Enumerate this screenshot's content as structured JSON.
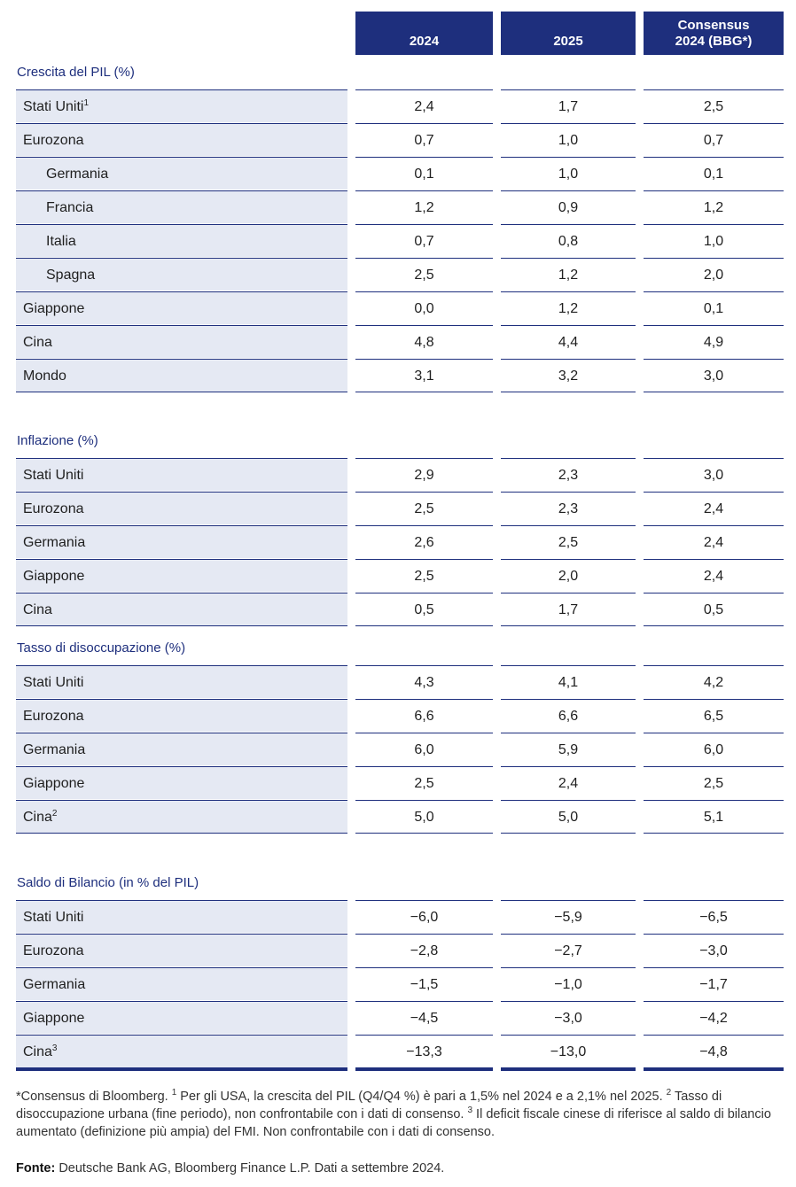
{
  "headers": {
    "col1": "2024",
    "col2": "2025",
    "col3_line1": "Consensus",
    "col3_line2": "2024 (BBG*)"
  },
  "sections": [
    {
      "title": "Crescita del PIL (%)",
      "rows": [
        {
          "label": "Stati Uniti",
          "sup": "1",
          "indent": false,
          "v1": "2,4",
          "v2": "1,7",
          "v3": "2,5"
        },
        {
          "label": "Eurozona",
          "sup": "",
          "indent": false,
          "v1": "0,7",
          "v2": "1,0",
          "v3": "0,7"
        },
        {
          "label": "Germania",
          "sup": "",
          "indent": true,
          "v1": "0,1",
          "v2": "1,0",
          "v3": "0,1"
        },
        {
          "label": "Francia",
          "sup": "",
          "indent": true,
          "v1": "1,2",
          "v2": "0,9",
          "v3": "1,2"
        },
        {
          "label": "Italia",
          "sup": "",
          "indent": true,
          "v1": "0,7",
          "v2": "0,8",
          "v3": "1,0"
        },
        {
          "label": "Spagna",
          "sup": "",
          "indent": true,
          "v1": "2,5",
          "v2": "1,2",
          "v3": "2,0"
        },
        {
          "label": "Giappone",
          "sup": "",
          "indent": false,
          "v1": "0,0",
          "v2": "1,2",
          "v3": "0,1"
        },
        {
          "label": "Cina",
          "sup": "",
          "indent": false,
          "v1": "4,8",
          "v2": "4,4",
          "v3": "4,9"
        },
        {
          "label": "Mondo",
          "sup": "",
          "indent": false,
          "v1": "3,1",
          "v2": "3,2",
          "v3": "3,0"
        }
      ]
    },
    {
      "title": "Inflazione (%)",
      "rows": [
        {
          "label": "Stati Uniti",
          "sup": "",
          "indent": false,
          "v1": "2,9",
          "v2": "2,3",
          "v3": "3,0"
        },
        {
          "label": "Eurozona",
          "sup": "",
          "indent": false,
          "v1": "2,5",
          "v2": "2,3",
          "v3": "2,4"
        },
        {
          "label": "Germania",
          "sup": "",
          "indent": false,
          "v1": "2,6",
          "v2": "2,5",
          "v3": "2,4"
        },
        {
          "label": "Giappone",
          "sup": "",
          "indent": false,
          "v1": "2,5",
          "v2": "2,0",
          "v3": "2,4"
        },
        {
          "label": "Cina",
          "sup": "",
          "indent": false,
          "v1": "0,5",
          "v2": "1,7",
          "v3": "0,5"
        }
      ]
    },
    {
      "title": "Tasso di disoccupazione (%)",
      "rows": [
        {
          "label": "Stati Uniti",
          "sup": "",
          "indent": false,
          "v1": "4,3",
          "v2": "4,1",
          "v3": "4,2"
        },
        {
          "label": "Eurozona",
          "sup": "",
          "indent": false,
          "v1": "6,6",
          "v2": "6,6",
          "v3": "6,5"
        },
        {
          "label": "Germania",
          "sup": "",
          "indent": false,
          "v1": "6,0",
          "v2": "5,9",
          "v3": "6,0"
        },
        {
          "label": "Giappone",
          "sup": "",
          "indent": false,
          "v1": "2,5",
          "v2": "2,4",
          "v3": "2,5"
        },
        {
          "label": "Cina",
          "sup": "2",
          "indent": false,
          "v1": "5,0",
          "v2": "5,0",
          "v3": "5,1"
        }
      ]
    },
    {
      "title": "Saldo di Bilancio (in % del PIL)",
      "rows": [
        {
          "label": "Stati Uniti",
          "sup": "",
          "indent": false,
          "v1": "−6,0",
          "v2": "−5,9",
          "v3": "−6,5"
        },
        {
          "label": "Eurozona",
          "sup": "",
          "indent": false,
          "v1": "−2,8",
          "v2": "−2,7",
          "v3": "−3,0"
        },
        {
          "label": "Germania",
          "sup": "",
          "indent": false,
          "v1": "−1,5",
          "v2": "−1,0",
          "v3": "−1,7"
        },
        {
          "label": "Giappone",
          "sup": "",
          "indent": false,
          "v1": "−4,5",
          "v2": "−3,0",
          "v3": "−4,2"
        },
        {
          "label": "Cina",
          "sup": "3",
          "indent": false,
          "v1": "−13,3",
          "v2": "−13,0",
          "v3": "−4,8"
        }
      ]
    }
  ],
  "footnote": {
    "p1": "*Consensus di Bloomberg. ",
    "s1": "1",
    "p2": " Per gli USA, la crescita del PIL (Q4/Q4 %) è pari a 1,5% nel 2024 e a 2,1% nel 2025. ",
    "s2": "2",
    "p3": " Tasso di disoccupazione urbana (fine periodo), non confrontabile con i dati di consenso. ",
    "s3": "3",
    "p4": " Il deficit fiscale cinese di riferisce al saldo di bilancio aumentato (definizione più ampia) del FMI. Non confrontabile con i dati di consenso."
  },
  "source": {
    "label": "Fonte:",
    "text": " Deutsche Bank AG, Bloomberg Finance L.P. Dati a settembre 2024."
  },
  "colors": {
    "navy": "#1e2f7d",
    "row_shade": "#e5e9f3"
  }
}
